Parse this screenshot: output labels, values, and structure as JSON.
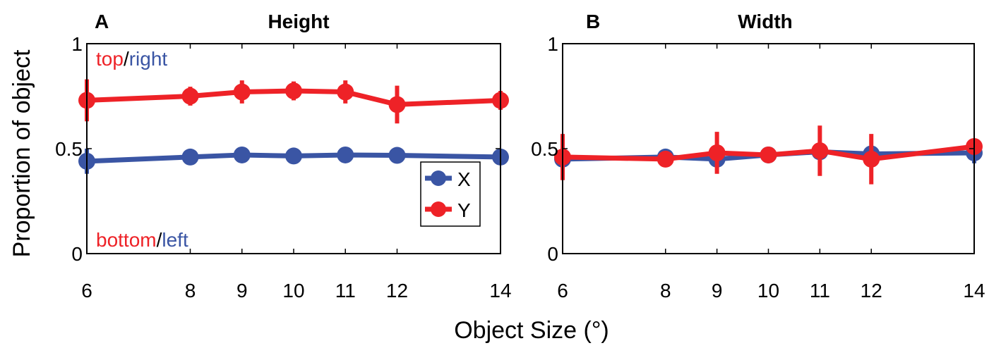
{
  "figure": {
    "ylabel": "Proportion of object",
    "xlabel": "Object Size (°)"
  },
  "colors": {
    "x_series": "#3A55A4",
    "y_series": "#EE2227",
    "axis": "#000000"
  },
  "chart_data": [
    {
      "type": "line",
      "panel_letter": "A",
      "title": "Height",
      "x": [
        6,
        8,
        9,
        10,
        11,
        12,
        14
      ],
      "xlim": [
        6,
        14
      ],
      "ylim": [
        0,
        1
      ],
      "y_ticks": [
        {
          "value": 0,
          "label": "0"
        },
        {
          "value": 0.5,
          "label": "0.5"
        },
        {
          "value": 1,
          "label": "1"
        }
      ],
      "x_ticks": [
        {
          "value": 6,
          "label": "6"
        },
        {
          "value": 8,
          "label": "8"
        },
        {
          "value": 9,
          "label": "9"
        },
        {
          "value": 10,
          "label": "10"
        },
        {
          "value": 11,
          "label": "11"
        },
        {
          "value": 12,
          "label": "12"
        },
        {
          "value": 14,
          "label": "14"
        }
      ],
      "annotations": {
        "top": [
          {
            "text": "top",
            "series": "y"
          },
          {
            "text": "/",
            "series": "none"
          },
          {
            "text": "right",
            "series": "x"
          }
        ],
        "bottom": [
          {
            "text": "bottom",
            "series": "y"
          },
          {
            "text": "/",
            "series": "none"
          },
          {
            "text": "left",
            "series": "x"
          }
        ]
      },
      "legend": {
        "position": "lower-right",
        "entries": [
          "X",
          "Y"
        ]
      },
      "series": [
        {
          "name": "X",
          "key": "x",
          "values": [
            0.44,
            0.46,
            0.47,
            0.465,
            0.47,
            0.468,
            0.46
          ],
          "errors": [
            0.06,
            0.02,
            0.02,
            0.035,
            0.02,
            0.02,
            0.02
          ]
        },
        {
          "name": "Y",
          "key": "y",
          "values": [
            0.73,
            0.75,
            0.77,
            0.775,
            0.77,
            0.71,
            0.73
          ],
          "errors": [
            0.1,
            0.045,
            0.055,
            0.045,
            0.055,
            0.09,
            0.045
          ]
        }
      ]
    },
    {
      "type": "line",
      "panel_letter": "B",
      "title": "Width",
      "x": [
        6,
        8,
        9,
        10,
        11,
        12,
        14
      ],
      "xlim": [
        6,
        14
      ],
      "ylim": [
        0,
        1
      ],
      "y_ticks": [
        {
          "value": 0,
          "label": "0"
        },
        {
          "value": 0.5,
          "label": "0.5"
        },
        {
          "value": 1,
          "label": "1"
        }
      ],
      "x_ticks": [
        {
          "value": 6,
          "label": "6"
        },
        {
          "value": 8,
          "label": "8"
        },
        {
          "value": 9,
          "label": "9"
        },
        {
          "value": 10,
          "label": "10"
        },
        {
          "value": 11,
          "label": "11"
        },
        {
          "value": 12,
          "label": "12"
        },
        {
          "value": 14,
          "label": "14"
        }
      ],
      "series": [
        {
          "name": "X",
          "key": "x",
          "values": [
            0.45,
            0.46,
            0.45,
            0.47,
            0.485,
            0.475,
            0.48
          ],
          "errors": [
            0.04,
            0.03,
            0.03,
            0.02,
            0.03,
            0.02,
            0.05
          ]
        },
        {
          "name": "Y",
          "key": "y",
          "values": [
            0.46,
            0.45,
            0.48,
            0.47,
            0.49,
            0.45,
            0.51
          ],
          "errors": [
            0.11,
            0.03,
            0.1,
            0.02,
            0.12,
            0.12,
            0.03
          ]
        }
      ]
    }
  ]
}
